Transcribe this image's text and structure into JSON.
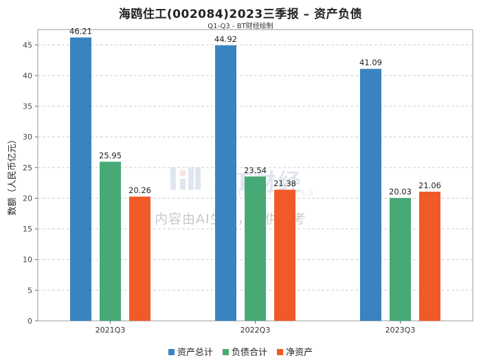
{
  "header": {
    "title": "海鸥住工(002084)2023三季报 – 资产负债",
    "subtitle": "Q1-Q3 - BT财经绘制"
  },
  "watermark": {
    "brand": "BT财经",
    "brand_en": "BUSINESS TIMES",
    "notice": "内容由AI生成，仅供参考"
  },
  "chart_data": {
    "type": "bar",
    "title": "海鸥住工(002084)2023三季报 – 资产负债",
    "subtitle": "Q1-Q3 - BT财经绘制",
    "ylabel": "数额（人民币亿元）",
    "xlabel": "",
    "ylim": [
      0,
      47.5
    ],
    "yticks": [
      0,
      5,
      10,
      15,
      20,
      25,
      30,
      35,
      40,
      45
    ],
    "grid": true,
    "legend_position": "bottom",
    "categories": [
      "2021Q3",
      "2022Q3",
      "2023Q3"
    ],
    "series": [
      {
        "name": "资产总计",
        "color": "#3a83c1",
        "values": [
          46.21,
          44.92,
          41.09
        ]
      },
      {
        "name": "负债合计",
        "color": "#47a976",
        "values": [
          25.95,
          23.54,
          20.03
        ]
      },
      {
        "name": "净资产",
        "color": "#f05a28",
        "values": [
          20.26,
          21.38,
          21.06
        ]
      }
    ]
  }
}
